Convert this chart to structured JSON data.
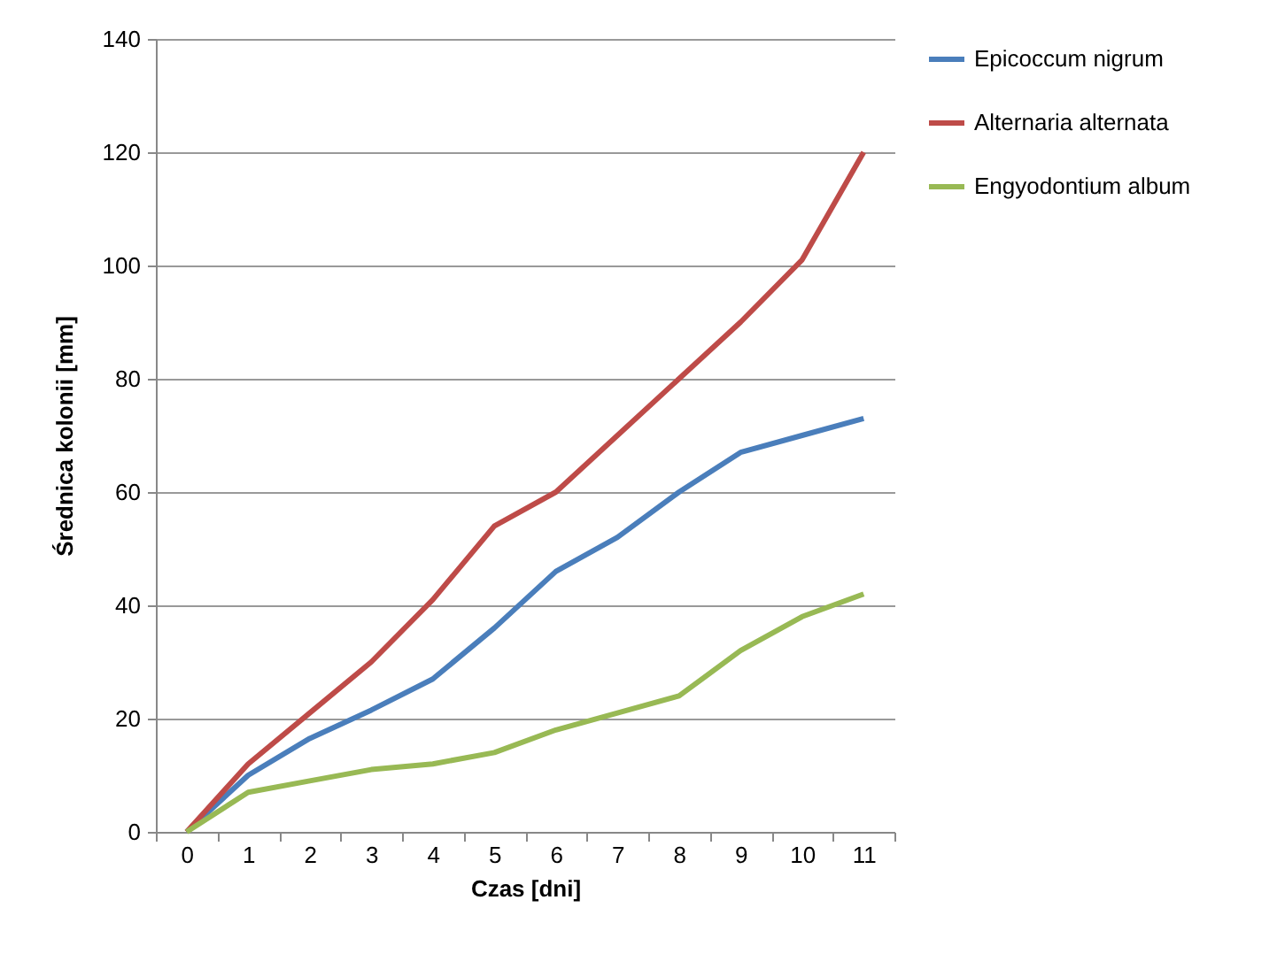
{
  "chart_data": {
    "type": "line",
    "xlabel": "Czas [dni]",
    "ylabel": "Średnica kolonii [mm]",
    "categories": [
      "0",
      "1",
      "2",
      "3",
      "4",
      "5",
      "6",
      "7",
      "8",
      "9",
      "10",
      "11"
    ],
    "series": [
      {
        "name": "Epicoccum nigrum",
        "color": "#4a7ebb",
        "values": [
          0,
          10,
          16.5,
          21.5,
          27,
          36,
          46,
          52,
          60,
          67,
          70,
          73
        ]
      },
      {
        "name": "Alternaria alternata",
        "color": "#be4b48",
        "values": [
          0,
          12,
          21,
          30,
          41,
          54,
          60,
          70,
          80,
          90,
          101,
          120
        ]
      },
      {
        "name": "Engyodontium album",
        "color": "#98b954",
        "values": [
          0,
          7,
          9,
          11,
          12,
          14,
          18,
          21,
          24,
          32,
          38,
          42
        ]
      }
    ],
    "ylim": [
      0,
      140
    ],
    "yticks": [
      0,
      20,
      40,
      60,
      80,
      100,
      120,
      140
    ],
    "grid": "y",
    "legend": "right",
    "marker": "none",
    "line_style": "solid"
  }
}
